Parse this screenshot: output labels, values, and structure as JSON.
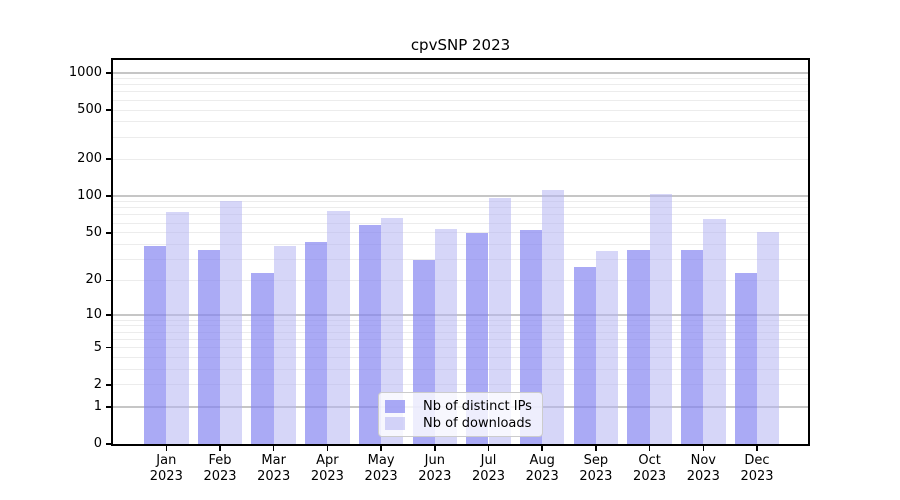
{
  "title": "cpvSNP 2023",
  "legend": {
    "items": [
      {
        "label": "Nb of distinct IPs",
        "color": "rgba(130,130,240,0.68)"
      },
      {
        "label": "Nb of downloads",
        "color": "rgba(180,180,242,0.55)"
      }
    ]
  },
  "colors": {
    "distinct_ips_bar": "rgba(130,130,240,0.68)",
    "downloads_bar": "rgba(180,180,242,0.55)",
    "major_gridline": "#c6c6c6",
    "minor_gridline": "#ececec",
    "axis": "#000000"
  },
  "chart_data": {
    "type": "bar",
    "title": "cpvSNP 2023",
    "categories": [
      "Jan",
      "Feb",
      "Mar",
      "Apr",
      "May",
      "Jun",
      "Jul",
      "Aug",
      "Sep",
      "Oct",
      "Nov",
      "Dec"
    ],
    "year_label": "2023",
    "series": [
      {
        "name": "Nb of distinct IPs",
        "values": [
          39,
          36,
          23,
          42,
          58,
          30,
          50,
          53,
          26,
          36,
          36,
          23
        ]
      },
      {
        "name": "Nb of downloads",
        "values": [
          74,
          91,
          39,
          76,
          66,
          54,
          96,
          113,
          35,
          103,
          65,
          51
        ]
      }
    ],
    "xlabel": "",
    "ylabel": "",
    "y_scale": "log10(1+y)",
    "y_ticks": [
      0,
      1,
      2,
      5,
      10,
      20,
      50,
      100,
      200,
      500,
      1000
    ],
    "ylim": [
      0,
      1280
    ],
    "grid": {
      "major_at": [
        1,
        10,
        100,
        1000
      ],
      "minor_at": [
        2,
        3,
        4,
        5,
        6,
        7,
        8,
        9,
        20,
        30,
        40,
        50,
        60,
        70,
        80,
        90,
        200,
        300,
        400,
        500,
        600,
        700,
        800,
        900
      ]
    },
    "legend_position": "lower center"
  }
}
